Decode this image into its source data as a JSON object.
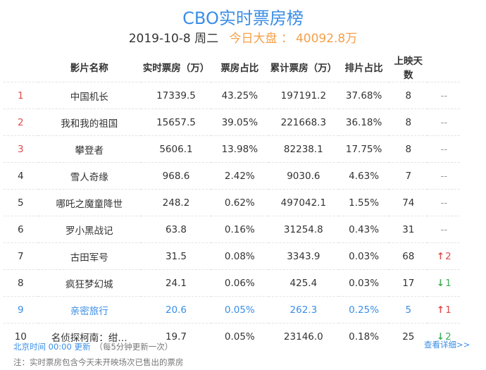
{
  "header": {
    "title": "CBO实时票房榜",
    "date": "2019-10-8 周二",
    "dapan_label": "今日大盘 ：",
    "dapan_value": "40092.8万"
  },
  "table": {
    "columns": [
      "影片名称",
      "实时票房（万）",
      "票房占比",
      "累计票房（万）",
      "排片占比",
      "上映天数"
    ],
    "rows": [
      {
        "rank": "1",
        "name": "中国机长",
        "realtime": "17339.5",
        "share": "43.25%",
        "cumulative": "197191.2",
        "screening": "37.68%",
        "days": "8",
        "trend": "--",
        "trend_dir": "none"
      },
      {
        "rank": "2",
        "name": "我和我的祖国",
        "realtime": "15657.5",
        "share": "39.05%",
        "cumulative": "221668.3",
        "screening": "36.18%",
        "days": "8",
        "trend": "--",
        "trend_dir": "none"
      },
      {
        "rank": "3",
        "name": "攀登者",
        "realtime": "5606.1",
        "share": "13.98%",
        "cumulative": "82238.1",
        "screening": "17.75%",
        "days": "8",
        "trend": "--",
        "trend_dir": "none"
      },
      {
        "rank": "4",
        "name": "雪人奇缘",
        "realtime": "968.6",
        "share": "2.42%",
        "cumulative": "9030.6",
        "screening": "4.63%",
        "days": "7",
        "trend": "--",
        "trend_dir": "none"
      },
      {
        "rank": "5",
        "name": "哪吒之魔童降世",
        "realtime": "248.2",
        "share": "0.62%",
        "cumulative": "497042.1",
        "screening": "1.55%",
        "days": "74",
        "trend": "--",
        "trend_dir": "none"
      },
      {
        "rank": "6",
        "name": "罗小黑战记",
        "realtime": "63.8",
        "share": "0.16%",
        "cumulative": "31254.8",
        "screening": "0.43%",
        "days": "31",
        "trend": "--",
        "trend_dir": "none"
      },
      {
        "rank": "7",
        "name": "古田军号",
        "realtime": "31.5",
        "share": "0.08%",
        "cumulative": "3343.9",
        "screening": "0.03%",
        "days": "68",
        "trend": "2",
        "trend_dir": "up"
      },
      {
        "rank": "8",
        "name": "疯狂梦幻城",
        "realtime": "24.1",
        "share": "0.06%",
        "cumulative": "425.4",
        "screening": "0.03%",
        "days": "17",
        "trend": "1",
        "trend_dir": "down"
      },
      {
        "rank": "9",
        "name": "亲密旅行",
        "realtime": "20.6",
        "share": "0.05%",
        "cumulative": "262.3",
        "screening": "0.25%",
        "days": "5",
        "trend": "1",
        "trend_dir": "up"
      },
      {
        "rank": "10",
        "name": "名侦探柯南：绀…",
        "realtime": "19.7",
        "share": "0.05%",
        "cumulative": "23146.0",
        "screening": "0.18%",
        "days": "25",
        "trend": "2",
        "trend_dir": "down"
      }
    ]
  },
  "footer": {
    "update_time": "北京时间 00:00 更新",
    "update_note": "（每5分钟更新一次）",
    "disclaimer": "注：实时票房包含今天未开映场次已售出的票房",
    "more_link": "查看详细>>"
  },
  "colors": {
    "accent_blue": "#3a8ee6",
    "orange": "#f5a04a",
    "up_red": "#e34b4b",
    "down_green": "#3fae5a"
  }
}
